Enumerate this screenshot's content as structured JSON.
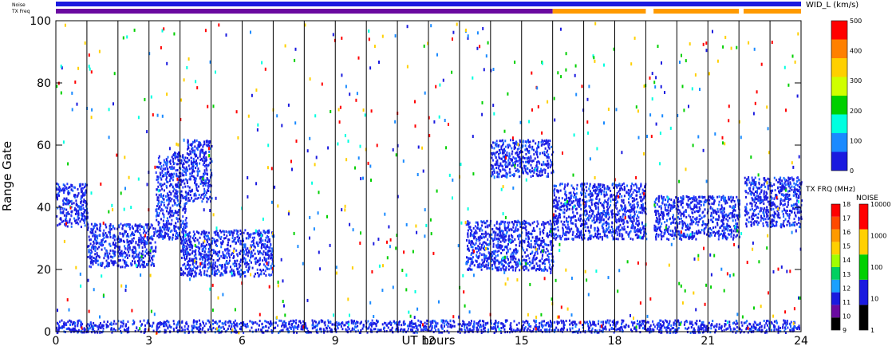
{
  "chart_data": {
    "type": "heatmap",
    "title": "",
    "xlabel": "UT hours",
    "ylabel": "Range Gate",
    "xlim": [
      0,
      24
    ],
    "ylim": [
      0,
      100
    ],
    "xticks": [
      0,
      3,
      6,
      9,
      12,
      15,
      18,
      21,
      24
    ],
    "yticks": [
      0,
      20,
      40,
      60,
      80,
      100
    ],
    "vertical_lines_ut": [
      1,
      2,
      3,
      4,
      5,
      6,
      7,
      8,
      9,
      10,
      11,
      12,
      13,
      14,
      15,
      16,
      17,
      18,
      19,
      20,
      21,
      22,
      23
    ],
    "top_bars": {
      "noise_label": "Noise",
      "txfreq_label": "TX Freq",
      "noise_color": "#1a1adf",
      "txfreq_segments": [
        {
          "from": 0,
          "to": 16,
          "color": "#6a0aa0"
        },
        {
          "from": 16,
          "to": 19,
          "color": "#ff9a00"
        },
        {
          "from": 19.25,
          "to": 22,
          "color": "#ff9a00"
        },
        {
          "from": 22.15,
          "to": 24,
          "color": "#ff9a00"
        }
      ]
    },
    "echo_bands": [
      {
        "t0": 0.0,
        "t1": 1.0,
        "g0": 34,
        "g1": 48
      },
      {
        "t0": 1.0,
        "t1": 3.2,
        "g0": 21,
        "g1": 35
      },
      {
        "t0": 3.2,
        "t1": 4.2,
        "g0": 30,
        "g1": 58
      },
      {
        "t0": 4.2,
        "t1": 5.0,
        "g0": 42,
        "g1": 62
      },
      {
        "t0": 4.0,
        "t1": 7.0,
        "g0": 18,
        "g1": 33
      },
      {
        "t0": 13.2,
        "t1": 16.0,
        "g0": 20,
        "g1": 36
      },
      {
        "t0": 14.0,
        "t1": 16.0,
        "g0": 50,
        "g1": 62
      },
      {
        "t0": 16.0,
        "t1": 19.0,
        "g0": 30,
        "g1": 48
      },
      {
        "t0": 19.25,
        "t1": 22.0,
        "g0": 30,
        "g1": 44
      },
      {
        "t0": 22.15,
        "t1": 24.0,
        "g0": 34,
        "g1": 50
      },
      {
        "t0": 0.0,
        "t1": 24.0,
        "g0": 0,
        "g1": 4
      }
    ],
    "colorbars": {
      "width": {
        "label": "WID_L (km/s)",
        "ticks": [
          "0",
          "100",
          "200",
          "300",
          "400",
          "500"
        ],
        "colors": [
          "#1a1adf",
          "#1a8aff",
          "#00ffe0",
          "#00d000",
          "#d0ff00",
          "#ffd000",
          "#ff8000",
          "#ff0000"
        ]
      },
      "txfreq": {
        "label": "TX FRQ (MHz)",
        "ticks": [
          "9",
          "10",
          "11",
          "12",
          "13",
          "14",
          "15",
          "16",
          "17",
          "18"
        ],
        "colors": [
          "#000000",
          "#6a0aa0",
          "#1a1adf",
          "#1aa0ff",
          "#00d060",
          "#a0ff00",
          "#ffd000",
          "#ff9a00",
          "#ff4a00",
          "#ff0000"
        ]
      },
      "noise": {
        "label": "NOISE",
        "ticks": [
          "1",
          "10",
          "100",
          "1000",
          "10000"
        ],
        "colors": [
          "#000000",
          "#1a1adf",
          "#00d000",
          "#ffd000",
          "#ff0000"
        ]
      }
    }
  }
}
